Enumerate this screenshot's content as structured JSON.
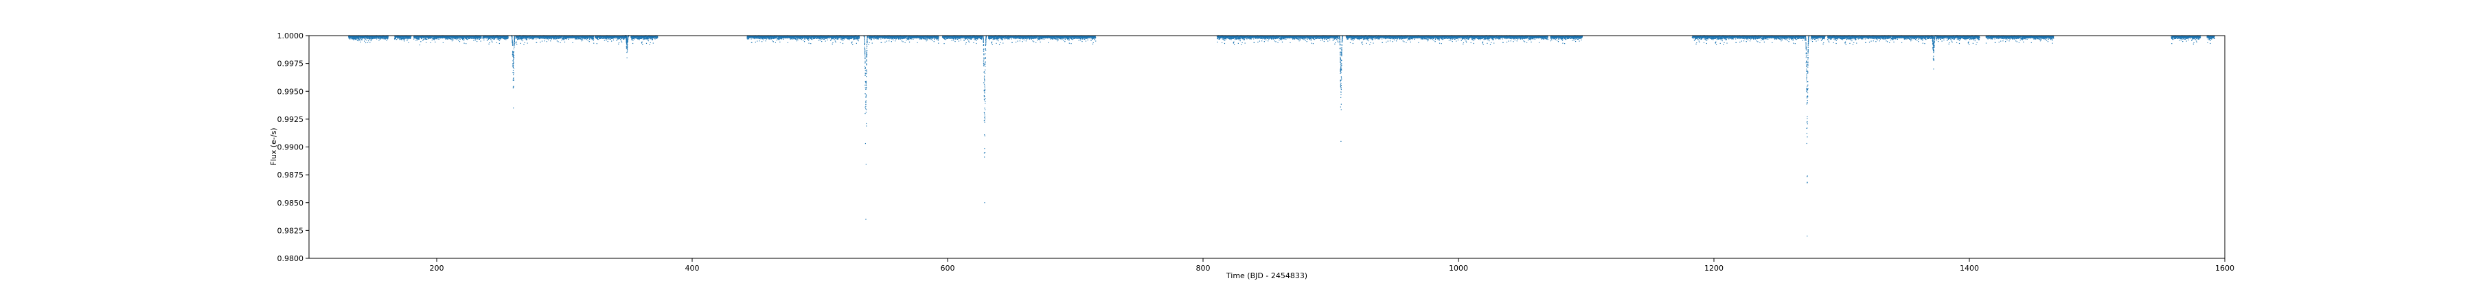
{
  "chart_data": {
    "type": "scatter",
    "title": "",
    "xlabel": "Time (BJD - 2454833)",
    "ylabel": "Flux (e-/s)",
    "xlim": [
      100,
      1600
    ],
    "ylim": [
      0.98,
      1.0
    ],
    "xticks": [
      200,
      400,
      600,
      800,
      1000,
      1200,
      1400,
      1600
    ],
    "xtick_labels": [
      "200",
      "400",
      "600",
      "800",
      "1000",
      "1200",
      "1400",
      "1600"
    ],
    "yticks": [
      0.98,
      0.9825,
      0.985,
      0.9875,
      0.99,
      0.9925,
      0.995,
      0.9975,
      1.0
    ],
    "ytick_labels": [
      "0.9800",
      "0.9825",
      "0.9850",
      "0.9875",
      "0.9900",
      "0.9925",
      "0.9950",
      "0.9975",
      "1.0000"
    ],
    "grid": false,
    "legend": "none",
    "marker_color": "#1f77b4",
    "segments": [
      [
        131,
        162
      ],
      [
        167,
        180
      ],
      [
        182,
        235
      ],
      [
        236,
        256
      ],
      [
        262,
        323
      ],
      [
        324,
        349
      ],
      [
        352,
        373
      ],
      [
        443,
        531
      ],
      [
        538,
        593
      ],
      [
        596,
        627
      ],
      [
        632,
        716
      ],
      [
        811,
        906
      ],
      [
        912,
        1070
      ],
      [
        1072,
        1097
      ],
      [
        1183,
        1271
      ],
      [
        1276,
        1287
      ],
      [
        1289,
        1372
      ],
      [
        1374,
        1408
      ],
      [
        1413,
        1466
      ],
      [
        1558,
        1581
      ],
      [
        1586,
        1592
      ]
    ],
    "dips": [
      {
        "x": 260,
        "min_flux": 0.9935
      },
      {
        "x": 349,
        "min_flux": 0.998
      },
      {
        "x": 536,
        "min_flux": 0.9835
      },
      {
        "x": 629,
        "min_flux": 0.985
      },
      {
        "x": 908,
        "min_flux": 0.9905
      },
      {
        "x": 1273,
        "min_flux": 0.982
      },
      {
        "x": 1372,
        "min_flux": 0.997
      }
    ]
  }
}
